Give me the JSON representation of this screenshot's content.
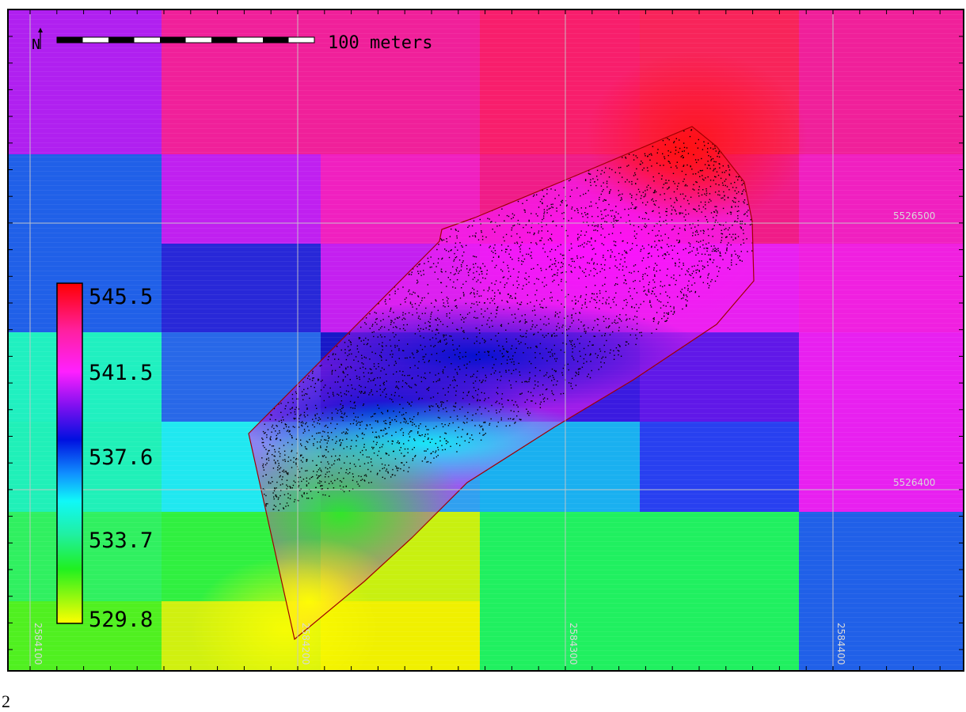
{
  "map": {
    "scale_label": "100 meters",
    "north_symbol": "N",
    "grid_x_labels": [
      "2584100",
      "2584200",
      "2584300",
      "2584400"
    ],
    "grid_y_labels": [
      "5526500",
      "5526400"
    ],
    "legend_values": [
      "545.5",
      "541.5",
      "537.6",
      "533.7",
      "529.8"
    ],
    "raster_cells": [
      [
        "#b020f0",
        "#f0209a",
        "#f0209a",
        "#f81e6c",
        "#f8245a",
        "#f0209a"
      ],
      [
        "#2060e8",
        "#c020f0",
        "#f020c0",
        "#f01c88",
        "#f01c88",
        "#f020c0"
      ],
      [
        "#2060e8",
        "#2828d8",
        "#c420f0",
        "#d820f0",
        "#e820f0",
        "#f020e0"
      ],
      [
        "#20f0c0",
        "#2868e8",
        "#1818c8",
        "#3a1ae0",
        "#6018e8",
        "#e820f0"
      ],
      [
        "#20f0b8",
        "#20e8f0",
        "#30a0f0",
        "#1ab0f0",
        "#2840f0",
        "#e820f0"
      ],
      [
        "#30f060",
        "#30f040",
        "#c8f010",
        "#20f060",
        "#20f060",
        "#2060e8"
      ],
      [
        "#50f020",
        "#d0f010",
        "#f0f000",
        "#20f060",
        "#20f060",
        "#2060e8"
      ]
    ],
    "colors": {
      "border": "#000000",
      "survey_outline": "#a00000",
      "points": "#000000",
      "grid": "#c8c8c8"
    }
  },
  "caption": "2"
}
